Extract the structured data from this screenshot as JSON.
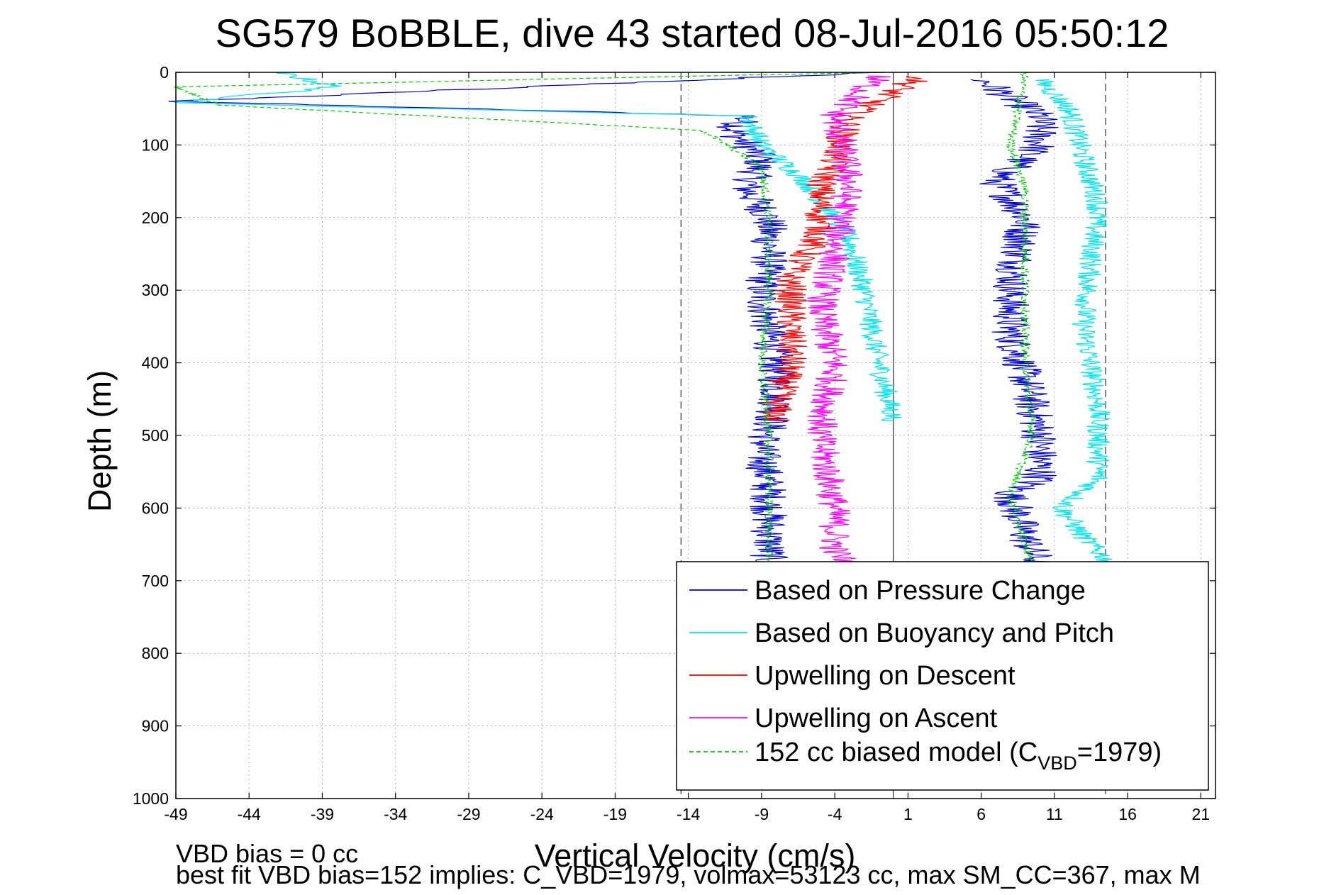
{
  "chart_data": {
    "type": "line",
    "title": "SG579 BoBBLE, dive 43 started 08-Jul-2016 05:50:12",
    "xlabel": "Vertical Velocity (cm/s)",
    "ylabel": "Depth (m)",
    "xlim": [
      -49,
      22
    ],
    "ylim": [
      0,
      1000
    ],
    "y_reversed": true,
    "grid": true,
    "x_ticks": [
      -49,
      -44,
      -39,
      -34,
      -29,
      -24,
      -19,
      -14,
      -9,
      -4,
      1,
      6,
      11,
      16,
      21
    ],
    "y_ticks": [
      0,
      100,
      200,
      300,
      400,
      500,
      600,
      700,
      800,
      900,
      1000
    ],
    "legend_position": "bottom-right",
    "reference_lines": [
      {
        "x": -14.5,
        "style": "dashed",
        "color": "#555555"
      },
      {
        "x": 0,
        "style": "solid",
        "color": "#555555"
      },
      {
        "x": 14.5,
        "style": "dashed",
        "color": "#555555"
      }
    ],
    "series": [
      {
        "name": "Based on Pressure Change",
        "color": "#0000cc",
        "noise": 1.3,
        "points": [
          [
            -1,
            0
          ],
          [
            -49,
            40
          ],
          [
            -10,
            60
          ],
          [
            -11,
            80
          ],
          [
            -9,
            120
          ],
          [
            -10,
            160
          ],
          [
            -8.5,
            200
          ],
          [
            -8.5,
            260
          ],
          [
            -9,
            300
          ],
          [
            -8.5,
            360
          ],
          [
            -8,
            400
          ],
          [
            -8,
            460
          ],
          [
            -9,
            520
          ],
          [
            -8.5,
            580
          ],
          [
            -8.5,
            680
          ]
        ]
      },
      {
        "name": "Based on Pressure Change",
        "color": "#0000cc",
        "noise": 1.3,
        "points": [
          [
            6,
            10
          ],
          [
            10,
            60
          ],
          [
            10,
            100
          ],
          [
            7,
            150
          ],
          [
            9,
            200
          ],
          [
            8,
            300
          ],
          [
            8,
            360
          ],
          [
            9,
            420
          ],
          [
            10,
            500
          ],
          [
            10,
            560
          ],
          [
            8,
            580
          ],
          [
            9,
            640
          ],
          [
            10,
            680
          ]
        ]
      },
      {
        "name": "Based on Buoyancy and Pitch",
        "color": "#00e5ee",
        "noise": 0.8,
        "points": [
          [
            -42,
            0
          ],
          [
            -38,
            20
          ],
          [
            -49,
            42
          ],
          [
            -10,
            60
          ],
          [
            -9,
            100
          ],
          [
            -6,
            150
          ],
          [
            -3,
            230
          ],
          [
            -2,
            300
          ],
          [
            -1,
            400
          ],
          [
            0,
            480
          ]
        ]
      },
      {
        "name": "Based on Buoyancy and Pitch",
        "color": "#00e5ee",
        "noise": 0.8,
        "points": [
          [
            10,
            10
          ],
          [
            12,
            50
          ],
          [
            13,
            120
          ],
          [
            14,
            180
          ],
          [
            13.5,
            260
          ],
          [
            13,
            350
          ],
          [
            14,
            460
          ],
          [
            14,
            560
          ],
          [
            11.5,
            600
          ],
          [
            13,
            640
          ],
          [
            15,
            680
          ]
        ]
      },
      {
        "name": "Upwelling on Descent",
        "color": "#ff0000",
        "noise": 1.1,
        "points": [
          [
            2,
            5
          ],
          [
            -3,
            60
          ],
          [
            -4,
            120
          ],
          [
            -5,
            160
          ],
          [
            -5,
            220
          ],
          [
            -7,
            280
          ],
          [
            -7,
            340
          ],
          [
            -7,
            400
          ],
          [
            -8,
            460
          ],
          [
            -8,
            480
          ]
        ]
      },
      {
        "name": "Upwelling on Ascent",
        "color": "#ff00ff",
        "noise": 1.1,
        "points": [
          [
            -1,
            5
          ],
          [
            -4,
            60
          ],
          [
            -3,
            150
          ],
          [
            -4,
            250
          ],
          [
            -5,
            330
          ],
          [
            -4,
            400
          ],
          [
            -5,
            500
          ],
          [
            -4,
            600
          ],
          [
            -4,
            660
          ],
          [
            -3,
            680
          ]
        ]
      },
      {
        "name": "152 cc biased model (CVBD=1979)",
        "color": "#00cc00",
        "noise": 0.3,
        "dashed": true,
        "points": [
          [
            -1,
            0
          ],
          [
            -49,
            20
          ],
          [
            -46,
            45
          ],
          [
            -13,
            80
          ],
          [
            -9,
            130
          ],
          [
            -8.5,
            200
          ],
          [
            -8.5,
            300
          ],
          [
            -9,
            400
          ],
          [
            -8.5,
            500
          ],
          [
            -8.5,
            600
          ],
          [
            -8.5,
            680
          ]
        ]
      },
      {
        "name": "152 cc biased model (CVBD=1979)",
        "color": "#00cc00",
        "noise": 0.3,
        "dashed": true,
        "points": [
          [
            9,
            0
          ],
          [
            8,
            100
          ],
          [
            9,
            160
          ],
          [
            9,
            220
          ],
          [
            9,
            300
          ],
          [
            9,
            400
          ],
          [
            9.5,
            500
          ],
          [
            8,
            580
          ],
          [
            9,
            650
          ],
          [
            9.5,
            680
          ]
        ]
      }
    ],
    "legend": [
      {
        "label": "Based on Pressure Change",
        "color": "#0000cc",
        "dashed": false
      },
      {
        "label": "Based on Buoyancy and Pitch",
        "color": "#00e5ee",
        "dashed": false
      },
      {
        "label": "Upwelling on Descent",
        "color": "#ff0000",
        "dashed": false
      },
      {
        "label": "Upwelling on Ascent",
        "color": "#ff00ff",
        "dashed": false
      },
      {
        "label_main": "152 cc biased model (C",
        "label_sub": "VBD",
        "label_tail": "=1979)",
        "color": "#00cc00",
        "dashed": true
      }
    ],
    "footnotes": [
      "VBD bias = 0 cc",
      "best fit VBD bias=152 implies: C_VBD=1979, volmax=53123 cc, max SM_CC=367, max M"
    ]
  }
}
